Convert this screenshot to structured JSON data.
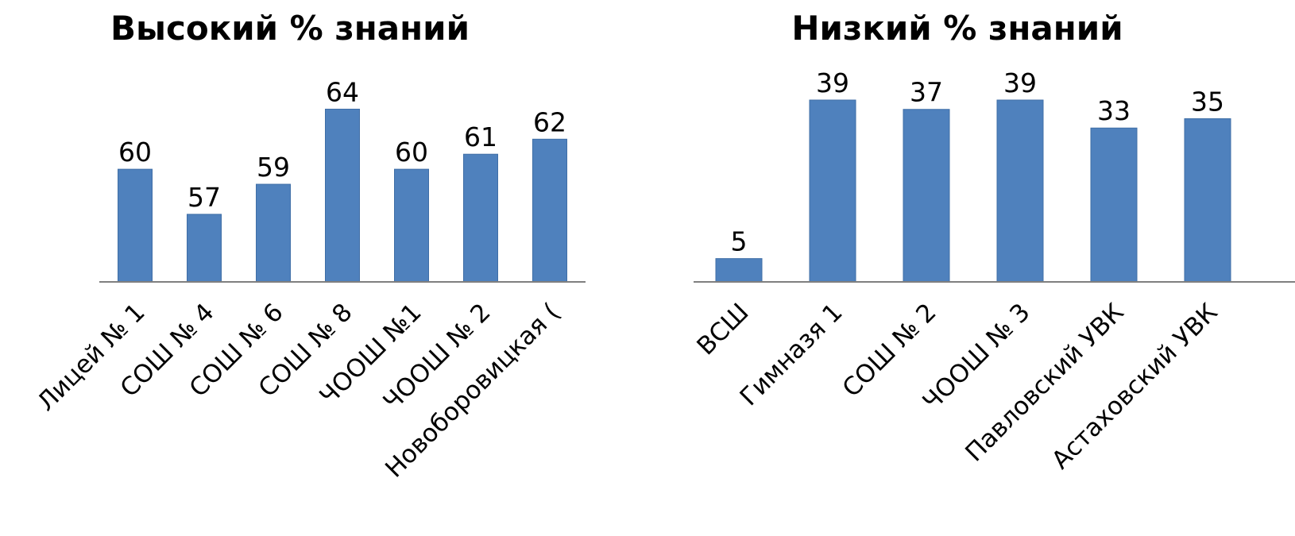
{
  "chart_data": [
    {
      "type": "bar",
      "title": "Высокий % знаний",
      "categories": [
        "Лицей № 1",
        "СОШ № 4",
        "СОШ № 6",
        "СОШ № 8",
        "ЧООШ №1",
        "ЧООШ № 2",
        "Новоборовицкая ("
      ],
      "values": [
        60,
        57,
        59,
        64,
        60,
        61,
        62
      ],
      "data_labels": [
        "60",
        "57",
        "59",
        "64",
        "60",
        "61",
        "62"
      ],
      "ylim": [
        52.5,
        64.5
      ],
      "bar_color": "#4f81bd",
      "grid": false,
      "legend": "none"
    },
    {
      "type": "bar",
      "title": "Низкий % знаний",
      "categories": [
        "ВСШ",
        "Гимназя 1",
        "СОШ № 2",
        "ЧООШ № 3",
        "Павловский УВК",
        "Астаховский УВК"
      ],
      "values": [
        5,
        39,
        37,
        39,
        33,
        35
      ],
      "data_labels": [
        "5",
        "39",
        "37",
        "39",
        "33",
        "35"
      ],
      "ylim": [
        0,
        39
      ],
      "bar_color": "#4f81bd",
      "grid": false,
      "legend": "none"
    }
  ]
}
